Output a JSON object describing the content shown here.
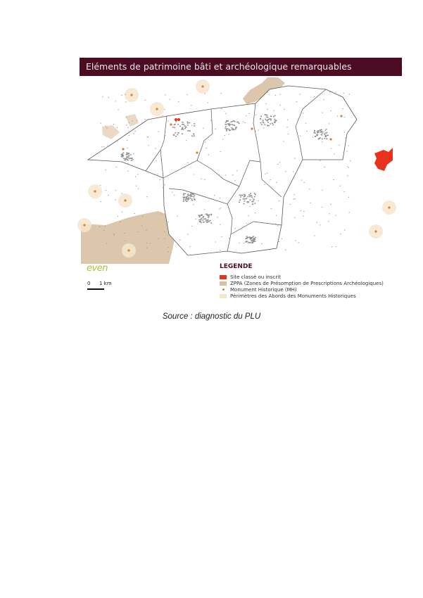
{
  "map": {
    "title": "Eléments de patrimoine bâti et archéologique remarquables",
    "logo_text": "even",
    "scale": {
      "zero": "0",
      "label": "1 km"
    },
    "legend": {
      "heading": "LEGENDE",
      "items": [
        {
          "label": "Site classé ou inscrit",
          "color": "#e8321e"
        },
        {
          "label": "ZPPA (Zones de Présomption de Prescriptions Archéologiques)",
          "color": "#d6bfa5"
        },
        {
          "label": "Monument Historique (MH)",
          "color": "#d9822b"
        },
        {
          "label": "Périmètres des Abords des Monuments Historiques",
          "color": "#f6e6cc"
        }
      ]
    }
  },
  "caption": "Source : diagnostic du PLU"
}
